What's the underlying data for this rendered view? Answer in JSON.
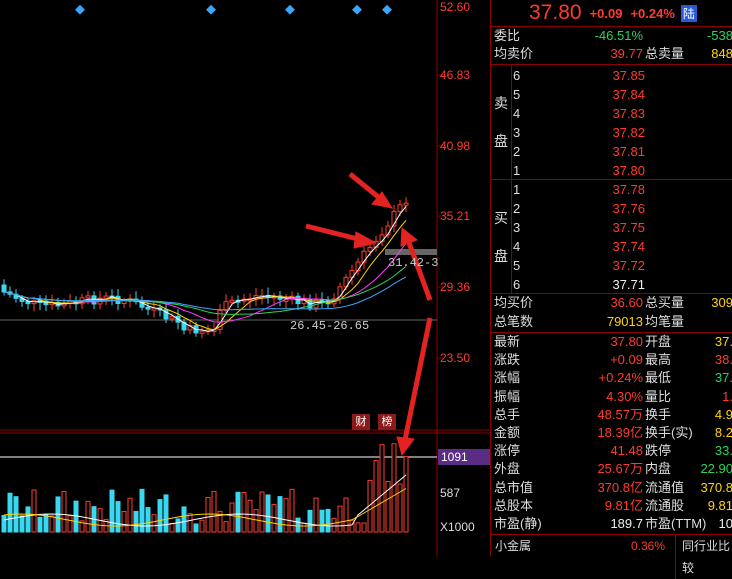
{
  "price_axis": [
    "52.60",
    "46.83",
    "40.98",
    "35.21",
    "29.36",
    "23.50"
  ],
  "range_label": "26.45-26.65",
  "high_label": "31.42-3",
  "tags": [
    "财",
    "榜"
  ],
  "volume_axis": {
    "badge": "1091",
    "mid": "587",
    "unit": "X1000"
  },
  "header": {
    "price": "37.80",
    "change": "+0.09",
    "pct": "+0.24%",
    "badge": "陆"
  },
  "stats_top": [
    {
      "label": "委比",
      "value": "-46.51%",
      "label2": "",
      "value2": "-538"
    },
    {
      "label": "均卖价",
      "value": "39.77",
      "label2": "总卖量",
      "value2": "848"
    }
  ],
  "sell_side_label": [
    "卖",
    "盘"
  ],
  "sell_book": [
    {
      "level": "6",
      "price": "37.85"
    },
    {
      "level": "5",
      "price": "37.84"
    },
    {
      "level": "4",
      "price": "37.83"
    },
    {
      "level": "3",
      "price": "37.82"
    },
    {
      "level": "2",
      "price": "37.81"
    },
    {
      "level": "1",
      "price": "37.80"
    }
  ],
  "buy_side_label": [
    "买",
    "盘"
  ],
  "buy_book": [
    {
      "level": "1",
      "price": "37.78"
    },
    {
      "level": "2",
      "price": "37.76"
    },
    {
      "level": "3",
      "price": "37.75"
    },
    {
      "level": "4",
      "price": "37.74"
    },
    {
      "level": "5",
      "price": "37.72"
    },
    {
      "level": "6",
      "price": "37.71"
    }
  ],
  "stats_mid": [
    {
      "label": "均买价",
      "value": "36.60",
      "label2": "总买量",
      "value2": "309"
    },
    {
      "label": "总笔数",
      "value": "79013",
      "label2": "均笔量",
      "value2": ""
    }
  ],
  "stats_bottom": [
    {
      "label": "最新",
      "value": "37.80",
      "label2": "开盘",
      "value2": "37."
    },
    {
      "label": "涨跌",
      "value": "+0.09",
      "label2": "最高",
      "value2": "38."
    },
    {
      "label": "涨幅",
      "value": "+0.24%",
      "label2": "最低",
      "value2": "37."
    },
    {
      "label": "振幅",
      "value": "4.30%",
      "label2": "量比",
      "value2": "1."
    },
    {
      "label": "总手",
      "value": "48.57万",
      "label2": "换手",
      "value2": "4.9"
    },
    {
      "label": "金额",
      "value": "18.39亿",
      "label2": "换手(实)",
      "value2": "8.2"
    },
    {
      "label": "涨停",
      "value": "41.48",
      "label2": "跌停",
      "value2": "33."
    },
    {
      "label": "外盘",
      "value": "25.67万",
      "label2": "内盘",
      "value2": "22.90"
    },
    {
      "label": "总市值",
      "value": "370.8亿",
      "label2": "流通值",
      "value2": "370.8"
    },
    {
      "label": "总股本",
      "value": "9.81亿",
      "label2": "流通股",
      "value2": "9.81"
    },
    {
      "label": "市盈(静)",
      "value": "189.7",
      "label2": "市盈(TTM)",
      "value2": "10"
    }
  ],
  "footer": {
    "name": "小金属",
    "pct": "0.36%",
    "link": "同行业比较"
  }
}
